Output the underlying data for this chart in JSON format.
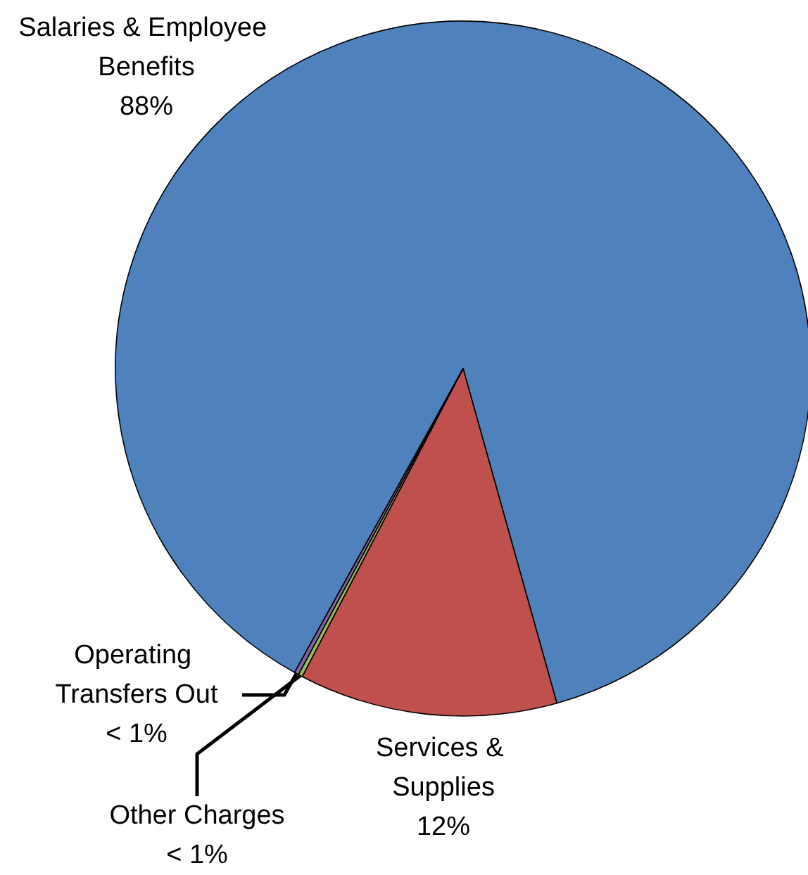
{
  "chart_data": {
    "type": "pie",
    "categories": [
      "Salaries & Employee Benefits",
      "Services & Supplies",
      "Other Charges",
      "Operating Transfers Out"
    ],
    "values": [
      87.6,
      12.0,
      0.2,
      0.2
    ],
    "value_labels": [
      "88%",
      "12%",
      "< 1%",
      "< 1%"
    ],
    "colors": [
      "#4f81bd",
      "#c0504d",
      "#9bbb59",
      "#8064a2"
    ],
    "legend": false
  }
}
